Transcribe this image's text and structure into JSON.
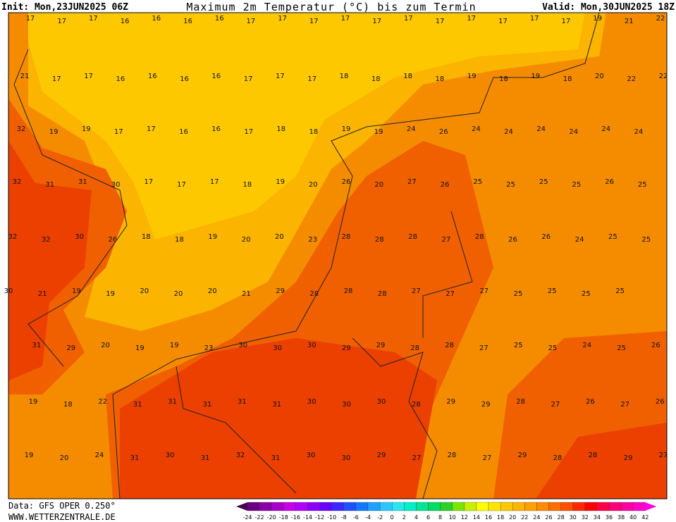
{
  "header": {
    "init": "Init: Mon,23JUN2025 06Z",
    "title": "Maximum 2m Temperatur (°C) bis zum Termin",
    "valid": "Valid: Mon,30JUN2025 18Z"
  },
  "map": {
    "rows": [
      [
        17,
        17,
        17,
        16,
        16,
        16,
        16,
        17,
        17,
        17,
        17,
        17,
        17,
        17,
        17,
        17,
        17,
        17,
        19,
        21,
        22
      ],
      [
        21,
        17,
        17,
        16,
        16,
        16,
        16,
        17,
        17,
        17,
        18,
        18,
        18,
        18,
        19,
        18,
        19,
        18,
        20,
        22,
        22
      ],
      [
        32,
        19,
        19,
        17,
        17,
        16,
        16,
        17,
        18,
        18,
        19,
        19,
        24,
        26,
        24,
        24,
        24,
        24,
        24,
        24
      ],
      [
        32,
        31,
        31,
        30,
        17,
        17,
        17,
        18,
        19,
        20,
        26,
        20,
        27,
        26,
        25,
        25,
        25,
        25,
        26,
        25
      ],
      [
        32,
        32,
        30,
        26,
        18,
        18,
        19,
        20,
        20,
        23,
        28,
        28,
        28,
        27,
        28,
        26,
        26,
        24,
        25,
        25
      ],
      [
        30,
        21,
        19,
        19,
        20,
        20,
        20,
        21,
        29,
        28,
        28,
        28,
        27,
        27,
        27,
        25,
        25,
        25,
        25
      ],
      [
        31,
        29,
        20,
        19,
        19,
        23,
        30,
        30,
        30,
        29,
        29,
        28,
        28,
        27,
        25,
        25,
        24,
        25,
        26
      ],
      [
        19,
        18,
        22,
        31,
        31,
        31,
        31,
        31,
        30,
        30,
        30,
        28,
        29,
        29,
        28,
        27,
        26,
        27,
        26
      ],
      [
        19,
        20,
        24,
        31,
        30,
        31,
        32,
        31,
        30,
        30,
        29,
        27,
        28,
        27,
        29,
        28,
        28,
        29,
        27
      ]
    ]
  },
  "footer": {
    "source": "Data: GFS OPER 0.250°",
    "site": "WWW.WETTERZENTRALE.DE"
  },
  "legend": {
    "labels": [
      -24,
      -22,
      -20,
      -18,
      -16,
      -14,
      -12,
      -10,
      -8,
      -6,
      -4,
      -2,
      0,
      2,
      4,
      6,
      8,
      10,
      12,
      14,
      16,
      18,
      20,
      22,
      24,
      26,
      28,
      30,
      32,
      34,
      36,
      38,
      40,
      42
    ]
  }
}
